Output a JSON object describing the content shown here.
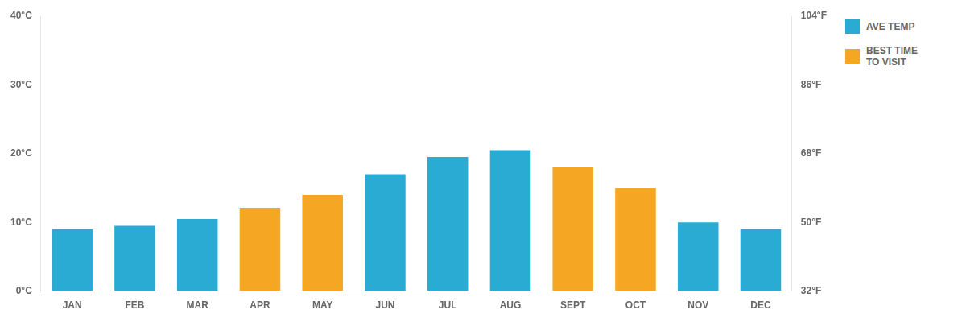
{
  "chart_data": {
    "type": "bar",
    "categories": [
      "JAN",
      "FEB",
      "MAR",
      "APR",
      "MAY",
      "JUN",
      "JUL",
      "AUG",
      "SEPT",
      "OCT",
      "NOV",
      "DEC"
    ],
    "series": [
      {
        "name": "AVE TEMP",
        "color": "#29ABD4",
        "values": [
          9,
          9.5,
          10.5,
          null,
          null,
          17,
          19.5,
          20.5,
          null,
          null,
          10,
          9
        ]
      },
      {
        "name": "BEST TIME\nTO VISIT",
        "color": "#F5A623",
        "values": [
          null,
          null,
          null,
          12,
          14,
          null,
          null,
          null,
          18,
          15,
          null,
          null
        ]
      }
    ],
    "ylim": [
      0,
      40
    ],
    "yticks": [
      {
        "value": 0,
        "label": "0°C"
      },
      {
        "value": 10,
        "label": "10°C"
      },
      {
        "value": 20,
        "label": "20°C"
      },
      {
        "value": 30,
        "label": "30°C"
      },
      {
        "value": 40,
        "label": "40°C"
      }
    ],
    "y2lim": [
      32,
      104
    ],
    "y2ticks": [
      {
        "value": 32,
        "label": "32°F"
      },
      {
        "value": 50,
        "label": "50°F"
      },
      {
        "value": 68,
        "label": "68°F"
      },
      {
        "value": 86,
        "label": "86°F"
      },
      {
        "value": 104,
        "label": "104°F"
      }
    ],
    "grid": false,
    "legend": "upper right"
  }
}
